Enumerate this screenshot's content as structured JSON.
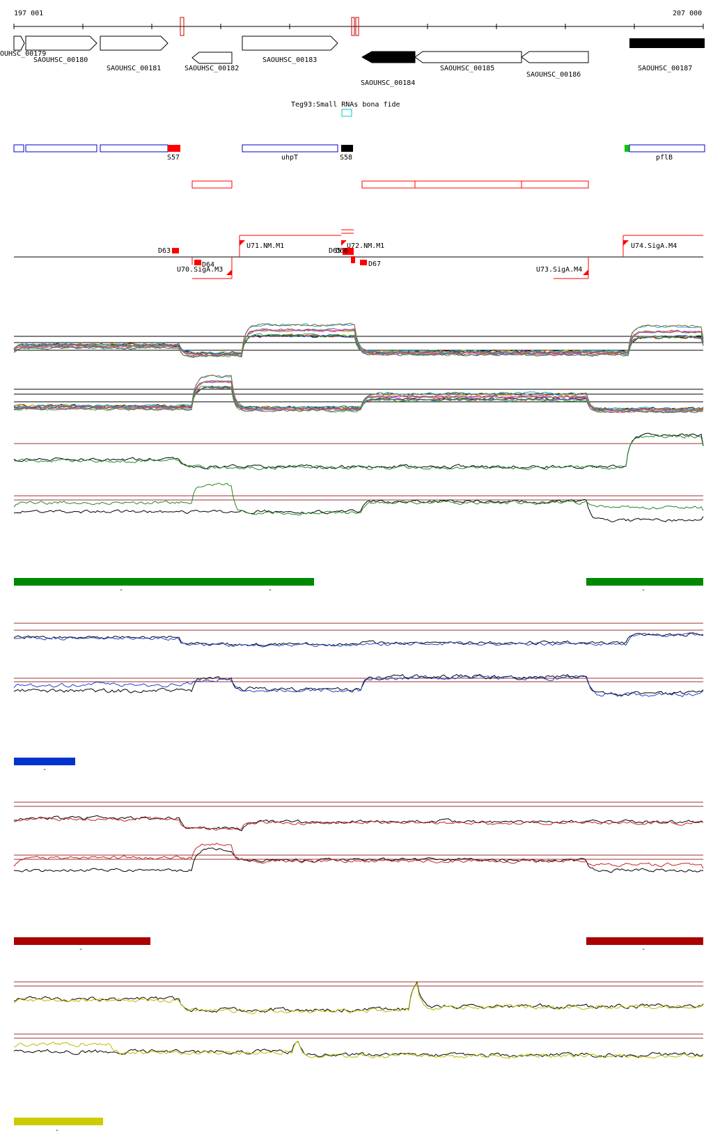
{
  "ruler": {
    "start_label": "197 001",
    "end_label": "207 000"
  },
  "genes": [
    {
      "label": "OUHSC_00179",
      "strand": "+",
      "fill": "white"
    },
    {
      "label": "SAOUHSC_00180",
      "strand": "+",
      "fill": "white"
    },
    {
      "label": "SAOUHSC_00181",
      "strand": "+",
      "fill": "white"
    },
    {
      "label": "SAOUHSC_00182",
      "strand": "-",
      "fill": "white"
    },
    {
      "label": "SAOUHSC_00183",
      "strand": "+",
      "fill": "white"
    },
    {
      "label": "SAOUHSC_00184",
      "strand": "-",
      "fill": "black"
    },
    {
      "label": "SAOUHSC_00185",
      "strand": "-",
      "fill": "white"
    },
    {
      "label": "SAOUHSC_00186",
      "strand": "-",
      "fill": "white"
    },
    {
      "label": "SAOUHSC_00187",
      "strand": "+",
      "fill": "black"
    }
  ],
  "srna_track": {
    "title": "Teg93:Small RNAs bona fide"
  },
  "annotation_labels": [
    "S57",
    "uhpT",
    "S58",
    "pflB"
  ],
  "transcript_labels": [
    "D63",
    "U71.NM.M1",
    "D64",
    "U70.SigA.M3",
    "D65",
    "D66",
    "U72.NM.M1",
    "D67",
    "U73.SigA.M4",
    "U74.SigA.M4"
  ],
  "condition_bar_labels": [
    "-",
    "-",
    "-",
    "-",
    "-",
    "-",
    "-"
  ],
  "colors": {
    "gene_outline": "#000000",
    "annotation_outline": "#0000cc",
    "annotation_red": "#ff0000",
    "annotation_green": "#00cc00",
    "transcript_red": "#ff0000",
    "srna_cyan": "#00cccc",
    "threshold_line": "#993333",
    "green_condition": "#008800",
    "blue_condition": "#0033cc",
    "red_condition": "#aa0000",
    "yellow_condition": "#cccc00"
  },
  "panels": [
    {
      "name": "multi-profile-plus",
      "series_colors": [
        "#000000",
        "#cc3333",
        "#3366cc",
        "#33aa33",
        "#cc9900",
        "#9933cc",
        "#ff66aa",
        "#666666",
        "#00aacc",
        "#996633"
      ]
    },
    {
      "name": "multi-profile-minus",
      "series_colors": [
        "#000000",
        "#cc3333",
        "#3366cc",
        "#33aa33",
        "#cc9900",
        "#9933cc",
        "#ff66aa",
        "#666666",
        "#00aacc",
        "#996633"
      ]
    },
    {
      "name": "green-condition",
      "series_colors": [
        "#000000",
        "#228822"
      ]
    },
    {
      "name": "blue-condition",
      "series_colors": [
        "#000000",
        "#2244cc"
      ]
    },
    {
      "name": "red-condition",
      "series_colors": [
        "#000000",
        "#cc2222"
      ]
    },
    {
      "name": "yellow-condition",
      "series_colors": [
        "#000000",
        "#bbbb00"
      ]
    }
  ]
}
